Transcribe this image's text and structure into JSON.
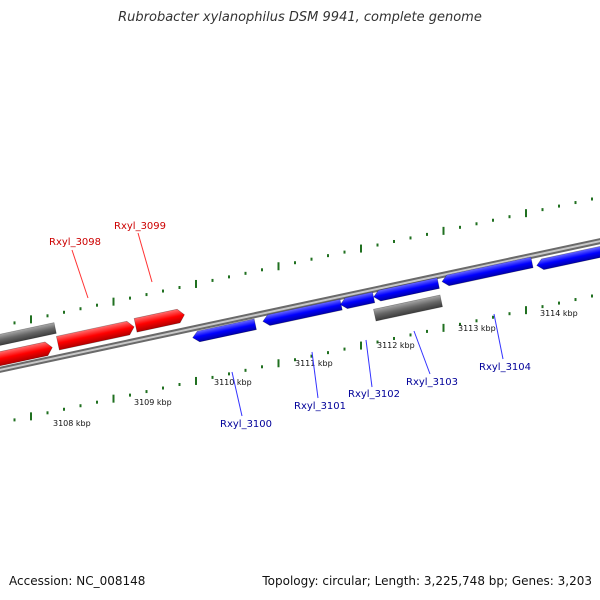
{
  "title": "Rubrobacter xylanophilus DSM 9941, complete genome",
  "footer": {
    "accession": "Accession: NC_008148",
    "summary": "Topology: circular; Length: 3,225,748 bp; Genes: 3,203"
  },
  "colors": {
    "forward_gene": "#ff0000",
    "reverse_gene": "#0000ff",
    "other_gene": "#666666",
    "backbone": "#8a8a8a",
    "tick": "#207020",
    "forward_label": "#cc0000",
    "reverse_label": "#000099"
  },
  "scale_labels": [
    "3108 kbp",
    "3109 kbp",
    "3110 kbp",
    "3111 kbp",
    "3112 kbp",
    "3113 kbp",
    "3114 kbp"
  ],
  "genes": [
    {
      "label": "",
      "strand": "other"
    },
    {
      "label": "Rxyl_3098",
      "strand": "forward"
    },
    {
      "label": "Rxyl_3099",
      "strand": "forward"
    },
    {
      "label": "Rxyl_3100",
      "strand": "reverse"
    },
    {
      "label": "Rxyl_3101",
      "strand": "reverse"
    },
    {
      "label": "Rxyl_3102",
      "strand": "reverse"
    },
    {
      "label": "Rxyl_3103",
      "strand": "reverse"
    },
    {
      "label": "",
      "strand": "other"
    },
    {
      "label": "Rxyl_3104",
      "strand": "reverse"
    },
    {
      "label": "",
      "strand": "reverse"
    }
  ]
}
